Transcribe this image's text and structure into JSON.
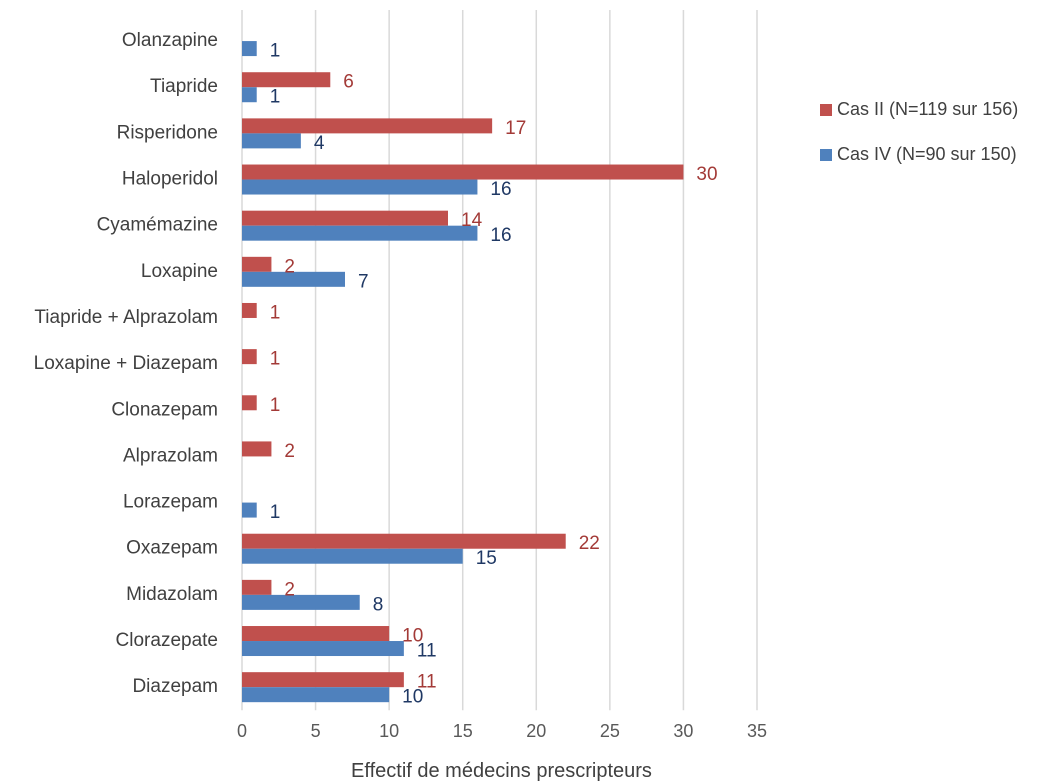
{
  "chart_data": {
    "type": "bar",
    "orientation": "horizontal",
    "categories": [
      "Olanzapine",
      "Tiapride",
      "Risperidone",
      "Haloperidol",
      "Cyamémazine",
      "Loxapine",
      "Tiapride + Alprazolam",
      "Loxapine + Diazepam",
      "Clonazepam",
      "Alprazolam",
      "Lorazepam",
      "Oxazepam",
      "Midazolam",
      "Clorazepate",
      "Diazepam"
    ],
    "series": [
      {
        "name": "Cas II (N=119 sur 156)",
        "color": "#c0504d",
        "label_color": "#a33a37",
        "values": [
          null,
          6,
          17,
          30,
          14,
          2,
          1,
          1,
          1,
          2,
          null,
          22,
          2,
          10,
          11
        ]
      },
      {
        "name": "Cas IV (N=90 sur 150)",
        "color": "#4f81bd",
        "label_color": "#1f3864",
        "values": [
          1,
          1,
          4,
          16,
          16,
          7,
          null,
          null,
          null,
          null,
          1,
          15,
          8,
          11,
          10
        ]
      }
    ],
    "xlabel": "Effectif de médecins prescripteurs",
    "ylabel": "",
    "xlim": [
      0,
      35
    ],
    "xticks": [
      0,
      5,
      10,
      15,
      20,
      25,
      30,
      35
    ],
    "grid": true,
    "legend_position": "right"
  }
}
